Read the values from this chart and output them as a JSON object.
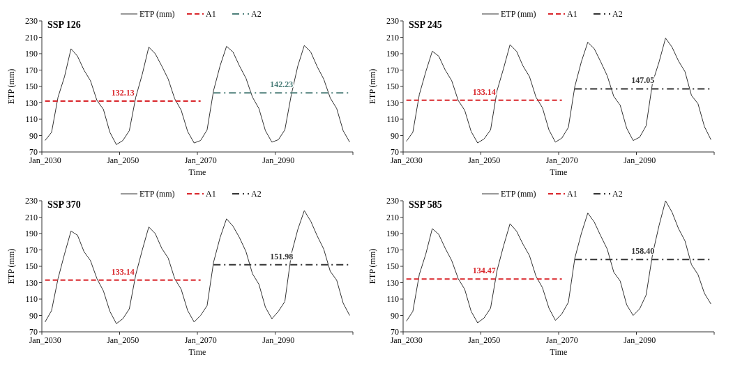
{
  "chart_data": [
    {
      "type": "line",
      "title": "SSP 126",
      "xlabel": "Time",
      "ylabel": "ETP (mm)",
      "legend": "top",
      "grid": false,
      "ylim": [
        70,
        230
      ],
      "yticks": [
        70,
        90,
        110,
        130,
        150,
        170,
        190,
        210,
        230
      ],
      "categories": [
        "Jan_2030",
        null,
        null,
        null,
        null,
        null,
        null,
        null,
        null,
        null,
        null,
        null,
        "Jan_2050",
        null,
        null,
        null,
        null,
        null,
        null,
        null,
        null,
        null,
        null,
        null,
        "Jan_2070",
        null,
        null,
        null,
        null,
        null,
        null,
        null,
        null,
        null,
        null,
        null,
        "Jan_2090",
        null,
        null,
        null,
        null,
        null,
        null,
        null,
        null,
        null,
        null,
        null
      ],
      "series": [
        {
          "name": "ETP (mm)",
          "color": "#333333",
          "line_style": "solid",
          "values": [
            84,
            94,
            137,
            162,
            196,
            187,
            170,
            157,
            133,
            122,
            94,
            79,
            84,
            96,
            137,
            165,
            198,
            190,
            175,
            159,
            135,
            121,
            95,
            81,
            84,
            97,
            145,
            175,
            199,
            192,
            175,
            160,
            137,
            123,
            96,
            82,
            85,
            97,
            140,
            175,
            200,
            192,
            174,
            159,
            136,
            123,
            96,
            82
          ]
        },
        {
          "name": "A1",
          "color": "#d9262b",
          "line_style": "dashed",
          "values": [
            132.13,
            132.13,
            132.13,
            132.13,
            132.13,
            132.13,
            132.13,
            132.13,
            132.13,
            132.13,
            132.13,
            132.13,
            132.13,
            132.13,
            132.13,
            132.13,
            132.13,
            132.13,
            132.13,
            132.13,
            132.13,
            132.13,
            132.13,
            132.13,
            132.13,
            null,
            null,
            null,
            null,
            null,
            null,
            null,
            null,
            null,
            null,
            null,
            null,
            null,
            null,
            null,
            null,
            null,
            null,
            null,
            null,
            null,
            null,
            null
          ]
        },
        {
          "name": "A2",
          "color": "#4d7f7a",
          "line_style": "dashdot",
          "values": [
            null,
            null,
            null,
            null,
            null,
            null,
            null,
            null,
            null,
            null,
            null,
            null,
            null,
            null,
            null,
            null,
            null,
            null,
            null,
            null,
            null,
            null,
            null,
            null,
            null,
            null,
            142.23,
            142.23,
            142.23,
            142.23,
            142.23,
            142.23,
            142.23,
            142.23,
            142.23,
            142.23,
            142.23,
            142.23,
            142.23,
            142.23,
            142.23,
            142.23,
            142.23,
            142.23,
            142.23,
            142.23,
            142.23,
            142.23
          ]
        }
      ],
      "annotations": [
        {
          "text": "132.13",
          "y": 132.13
        },
        {
          "text": "142.23",
          "y": 142.23
        }
      ]
    },
    {
      "type": "line",
      "title": "SSP 245",
      "xlabel": "Time",
      "ylabel": "ETP (mm)",
      "legend": "top",
      "grid": false,
      "ylim": [
        70,
        230
      ],
      "yticks": [
        70,
        90,
        110,
        130,
        150,
        170,
        190,
        210,
        230
      ],
      "categories": [
        "Jan_2030",
        null,
        null,
        null,
        null,
        null,
        null,
        null,
        null,
        null,
        null,
        null,
        "Jan_2050",
        null,
        null,
        null,
        null,
        null,
        null,
        null,
        null,
        null,
        null,
        null,
        "Jan_2070",
        null,
        null,
        null,
        null,
        null,
        null,
        null,
        null,
        null,
        null,
        null,
        "Jan_2090",
        null,
        null,
        null,
        null,
        null,
        null,
        null,
        null,
        null,
        null,
        null
      ],
      "series": [
        {
          "name": "ETP (mm)",
          "color": "#333333",
          "line_style": "solid",
          "values": [
            83,
            94,
            140,
            168,
            193,
            187,
            170,
            157,
            133,
            121,
            95,
            81,
            86,
            97,
            145,
            172,
            201,
            193,
            175,
            162,
            137,
            124,
            97,
            82,
            87,
            100,
            150,
            180,
            204,
            196,
            180,
            163,
            138,
            127,
            99,
            84,
            88,
            102,
            155,
            180,
            209,
            198,
            181,
            168,
            139,
            129,
            101,
            85
          ]
        },
        {
          "name": "A1",
          "color": "#d9262b",
          "line_style": "dashed",
          "values": [
            133.14,
            133.14,
            133.14,
            133.14,
            133.14,
            133.14,
            133.14,
            133.14,
            133.14,
            133.14,
            133.14,
            133.14,
            133.14,
            133.14,
            133.14,
            133.14,
            133.14,
            133.14,
            133.14,
            133.14,
            133.14,
            133.14,
            133.14,
            133.14,
            133.14,
            null,
            null,
            null,
            null,
            null,
            null,
            null,
            null,
            null,
            null,
            null,
            null,
            null,
            null,
            null,
            null,
            null,
            null,
            null,
            null,
            null,
            null,
            null
          ]
        },
        {
          "name": "A2",
          "color": "#333333",
          "line_style": "dashdot",
          "values": [
            null,
            null,
            null,
            null,
            null,
            null,
            null,
            null,
            null,
            null,
            null,
            null,
            null,
            null,
            null,
            null,
            null,
            null,
            null,
            null,
            null,
            null,
            null,
            null,
            null,
            null,
            147.05,
            147.05,
            147.05,
            147.05,
            147.05,
            147.05,
            147.05,
            147.05,
            147.05,
            147.05,
            147.05,
            147.05,
            147.05,
            147.05,
            147.05,
            147.05,
            147.05,
            147.05,
            147.05,
            147.05,
            147.05,
            147.05
          ]
        }
      ],
      "annotations": [
        {
          "text": "133.14",
          "y": 133.14
        },
        {
          "text": "147.05",
          "y": 147.05
        }
      ]
    },
    {
      "type": "line",
      "title": "SSP 370",
      "xlabel": "Time",
      "ylabel": "ETP (mm)",
      "legend": "top",
      "grid": false,
      "ylim": [
        70,
        230
      ],
      "yticks": [
        70,
        90,
        110,
        130,
        150,
        170,
        190,
        210,
        230
      ],
      "categories": [
        "Jan_2030",
        null,
        null,
        null,
        null,
        null,
        null,
        null,
        null,
        null,
        null,
        null,
        "Jan_2050",
        null,
        null,
        null,
        null,
        null,
        null,
        null,
        null,
        null,
        null,
        null,
        "Jan_2070",
        null,
        null,
        null,
        null,
        null,
        null,
        null,
        null,
        null,
        null,
        null,
        "Jan_2090",
        null,
        null,
        null,
        null,
        null,
        null,
        null,
        null,
        null,
        null,
        null
      ],
      "series": [
        {
          "name": "ETP (mm)",
          "color": "#333333",
          "line_style": "solid",
          "values": [
            82,
            96,
            135,
            165,
            193,
            188,
            168,
            157,
            135,
            120,
            95,
            80,
            86,
            98,
            140,
            170,
            198,
            190,
            172,
            160,
            135,
            122,
            96,
            82,
            90,
            102,
            155,
            185,
            208,
            199,
            185,
            168,
            141,
            128,
            100,
            86,
            95,
            107,
            165,
            195,
            218,
            205,
            187,
            171,
            144,
            133,
            105,
            90
          ]
        },
        {
          "name": "A1",
          "color": "#d9262b",
          "line_style": "dashed",
          "values": [
            133.14,
            133.14,
            133.14,
            133.14,
            133.14,
            133.14,
            133.14,
            133.14,
            133.14,
            133.14,
            133.14,
            133.14,
            133.14,
            133.14,
            133.14,
            133.14,
            133.14,
            133.14,
            133.14,
            133.14,
            133.14,
            133.14,
            133.14,
            133.14,
            133.14,
            null,
            null,
            null,
            null,
            null,
            null,
            null,
            null,
            null,
            null,
            null,
            null,
            null,
            null,
            null,
            null,
            null,
            null,
            null,
            null,
            null,
            null,
            null
          ]
        },
        {
          "name": "A2",
          "color": "#333333",
          "line_style": "dashdot",
          "values": [
            null,
            null,
            null,
            null,
            null,
            null,
            null,
            null,
            null,
            null,
            null,
            null,
            null,
            null,
            null,
            null,
            null,
            null,
            null,
            null,
            null,
            null,
            null,
            null,
            null,
            null,
            151.98,
            151.98,
            151.98,
            151.98,
            151.98,
            151.98,
            151.98,
            151.98,
            151.98,
            151.98,
            151.98,
            151.98,
            151.98,
            151.98,
            151.98,
            151.98,
            151.98,
            151.98,
            151.98,
            151.98,
            151.98,
            151.98
          ]
        }
      ],
      "annotations": [
        {
          "text": "133.14",
          "y": 133.14
        },
        {
          "text": "151.98",
          "y": 151.98
        }
      ]
    },
    {
      "type": "line",
      "title": "SSP 585",
      "xlabel": "Time",
      "ylabel": "ETP (mm)",
      "legend": "top",
      "grid": false,
      "ylim": [
        70,
        230
      ],
      "yticks": [
        70,
        90,
        110,
        130,
        150,
        170,
        190,
        210,
        230
      ],
      "categories": [
        "Jan_2030",
        null,
        null,
        null,
        null,
        null,
        null,
        null,
        null,
        null,
        null,
        null,
        "Jan_2050",
        null,
        null,
        null,
        null,
        null,
        null,
        null,
        null,
        null,
        null,
        null,
        "Jan_2070",
        null,
        null,
        null,
        null,
        null,
        null,
        null,
        null,
        null,
        null,
        null,
        "Jan_2090",
        null,
        null,
        null,
        null,
        null,
        null,
        null,
        null,
        null,
        null,
        null
      ],
      "series": [
        {
          "name": "ETP (mm)",
          "color": "#333333",
          "line_style": "solid",
          "values": [
            83,
            95,
            140,
            165,
            196,
            189,
            172,
            157,
            135,
            122,
            95,
            81,
            87,
            99,
            145,
            175,
            202,
            193,
            177,
            163,
            138,
            124,
            99,
            84,
            92,
            106,
            160,
            190,
            215,
            204,
            187,
            171,
            143,
            132,
            103,
            90,
            98,
            115,
            165,
            200,
            230,
            216,
            196,
            181,
            152,
            140,
            117,
            104
          ]
        },
        {
          "name": "A1",
          "color": "#d9262b",
          "line_style": "dashed",
          "values": [
            134.47,
            134.47,
            134.47,
            134.47,
            134.47,
            134.47,
            134.47,
            134.47,
            134.47,
            134.47,
            134.47,
            134.47,
            134.47,
            134.47,
            134.47,
            134.47,
            134.47,
            134.47,
            134.47,
            134.47,
            134.47,
            134.47,
            134.47,
            134.47,
            134.47,
            null,
            null,
            null,
            null,
            null,
            null,
            null,
            null,
            null,
            null,
            null,
            null,
            null,
            null,
            null,
            null,
            null,
            null,
            null,
            null,
            null,
            null,
            null
          ]
        },
        {
          "name": "A2",
          "color": "#333333",
          "line_style": "dashdot",
          "values": [
            null,
            null,
            null,
            null,
            null,
            null,
            null,
            null,
            null,
            null,
            null,
            null,
            null,
            null,
            null,
            null,
            null,
            null,
            null,
            null,
            null,
            null,
            null,
            null,
            null,
            null,
            158.4,
            158.4,
            158.4,
            158.4,
            158.4,
            158.4,
            158.4,
            158.4,
            158.4,
            158.4,
            158.4,
            158.4,
            158.4,
            158.4,
            158.4,
            158.4,
            158.4,
            158.4,
            158.4,
            158.4,
            158.4,
            158.4
          ]
        }
      ],
      "annotations": [
        {
          "text": "134.47",
          "y": 134.47
        },
        {
          "text": "158.40",
          "y": 158.4
        }
      ]
    }
  ]
}
